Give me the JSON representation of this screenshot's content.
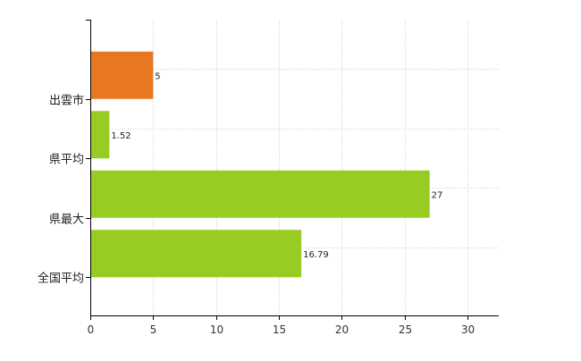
{
  "chart_data": {
    "type": "bar",
    "orientation": "horizontal",
    "categories": [
      "出雲市",
      "県平均",
      "県最大",
      "全国平均"
    ],
    "values": [
      5,
      1.52,
      27,
      16.79
    ],
    "data_labels": [
      "5",
      "1.52",
      "27",
      "16.79"
    ],
    "bar_colors": [
      "#E87722",
      "#99CC22",
      "#99CC22",
      "#99CC22"
    ],
    "xlim": [
      0,
      32.5
    ],
    "x_ticks": [
      0,
      5,
      10,
      15,
      20,
      25,
      30
    ],
    "x_tick_labels": [
      "0",
      "5",
      "10",
      "15",
      "20",
      "25",
      "30"
    ],
    "grid": true,
    "legend": "none",
    "title": "",
    "xlabel": "",
    "ylabel": ""
  }
}
